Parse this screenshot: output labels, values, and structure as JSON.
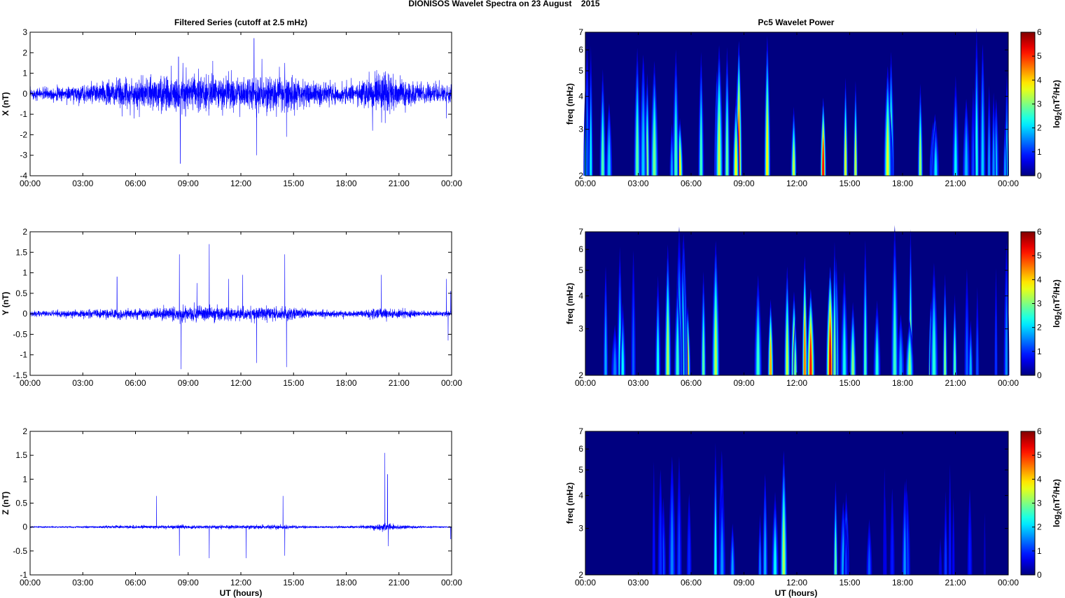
{
  "figure": {
    "suptitle": "DIONISOS Wavelet Spectra on 23 August    2015",
    "left_title": "Filtered Series (cutoff at 2.5 mHz)",
    "right_title": "Pc5 Wavelet Power",
    "xlabel": "UT (hours)",
    "spec_ylabel": "freq (mHz)",
    "colorbar_label": "log2(nT2/Hz)",
    "colorbar_label_parts": {
      "base": "log",
      "sub": "2",
      "mid": "(nT",
      "sup": "2",
      "end": "/Hz)"
    },
    "colormap": "jet"
  },
  "chart_data": [
    {
      "type": "line",
      "component": "X",
      "ylabel": "X (nT)",
      "ylim": [
        -4,
        3
      ],
      "yticks": [
        "-4",
        "-3",
        "-2",
        "-1",
        "0",
        "1",
        "2",
        "3"
      ],
      "xlim_hours": [
        0,
        24
      ],
      "xticks": [
        "00:00",
        "03:00",
        "06:00",
        "09:00",
        "12:00",
        "15:00",
        "18:00",
        "21:00",
        "00:00"
      ],
      "line_color": "#0000ff",
      "background_amplitude": 0.25,
      "envelope": [
        [
          0,
          0.5
        ],
        [
          3,
          0.8
        ],
        [
          5,
          1.3
        ],
        [
          7,
          1.5
        ],
        [
          8.5,
          1.8
        ],
        [
          10,
          1.6
        ],
        [
          12,
          1.6
        ],
        [
          13,
          1.6
        ],
        [
          14.5,
          1.7
        ],
        [
          16,
          1.1
        ],
        [
          18.5,
          0.9
        ],
        [
          20,
          1.9
        ],
        [
          21,
          1.5
        ],
        [
          22.5,
          0.8
        ],
        [
          24,
          0.7
        ]
      ],
      "spikes": [
        [
          8.45,
          1.8
        ],
        [
          8.55,
          -3.4
        ],
        [
          8.7,
          1.5
        ],
        [
          8.85,
          -1.1
        ],
        [
          10.4,
          1.6
        ],
        [
          11.3,
          1.1
        ],
        [
          12.75,
          2.7
        ],
        [
          12.9,
          -3.0
        ],
        [
          13.2,
          1.7
        ],
        [
          14.5,
          1.5
        ],
        [
          14.6,
          -2.1
        ],
        [
          19.5,
          -1.8
        ],
        [
          19.9,
          0.9
        ],
        [
          20.2,
          0.9
        ],
        [
          23.7,
          -1.2
        ]
      ]
    },
    {
      "type": "line",
      "component": "Y",
      "ylabel": "Y (nT)",
      "ylim": [
        -1.5,
        2
      ],
      "yticks": [
        "-1.5",
        "-1",
        "-0.5",
        "0",
        "0.5",
        "1",
        "1.5",
        "2"
      ],
      "xlim_hours": [
        0,
        24
      ],
      "xticks": [
        "00:00",
        "03:00",
        "06:00",
        "09:00",
        "12:00",
        "15:00",
        "18:00",
        "21:00",
        "00:00"
      ],
      "line_color": "#0000ff",
      "background_amplitude": 0.1,
      "envelope": [
        [
          0,
          0.3
        ],
        [
          3,
          0.45
        ],
        [
          5,
          0.6
        ],
        [
          7,
          0.6
        ],
        [
          8.5,
          0.9
        ],
        [
          10,
          0.85
        ],
        [
          12,
          0.75
        ],
        [
          14.5,
          0.8
        ],
        [
          16,
          0.4
        ],
        [
          18.5,
          0.35
        ],
        [
          20,
          0.7
        ],
        [
          21,
          0.5
        ],
        [
          22.5,
          0.3
        ],
        [
          24,
          0.3
        ]
      ],
      "spikes": [
        [
          4.95,
          0.9
        ],
        [
          8.5,
          1.45
        ],
        [
          8.6,
          -1.35
        ],
        [
          9.5,
          0.75
        ],
        [
          10.2,
          1.7
        ],
        [
          11.3,
          0.85
        ],
        [
          12.1,
          0.95
        ],
        [
          12.9,
          -1.2
        ],
        [
          14.5,
          1.45
        ],
        [
          14.6,
          -1.3
        ],
        [
          20,
          0.95
        ],
        [
          23.7,
          0.85
        ],
        [
          23.8,
          -0.65
        ],
        [
          23.95,
          0.55
        ]
      ]
    },
    {
      "type": "line",
      "component": "Z",
      "ylabel": "Z (nT)",
      "ylim": [
        -1,
        2
      ],
      "yticks": [
        "-1",
        "-0.5",
        "0",
        "0.5",
        "1",
        "1.5",
        "2"
      ],
      "xlim_hours": [
        0,
        24
      ],
      "xticks": [
        "00:00",
        "03:00",
        "06:00",
        "09:00",
        "12:00",
        "15:00",
        "18:00",
        "21:00",
        "00:00"
      ],
      "line_color": "#0000ff",
      "background_amplitude": 0.06,
      "envelope": [
        [
          0,
          0.1
        ],
        [
          3,
          0.15
        ],
        [
          5,
          0.25
        ],
        [
          7,
          0.3
        ],
        [
          8.5,
          0.35
        ],
        [
          10,
          0.3
        ],
        [
          12,
          0.3
        ],
        [
          14.5,
          0.35
        ],
        [
          16,
          0.2
        ],
        [
          18.5,
          0.2
        ],
        [
          19.5,
          0.4
        ],
        [
          20.2,
          0.7
        ],
        [
          21,
          0.35
        ],
        [
          22.5,
          0.15
        ],
        [
          24,
          0.1
        ]
      ],
      "spikes": [
        [
          7.2,
          0.65
        ],
        [
          8.5,
          -0.6
        ],
        [
          10.2,
          -0.65
        ],
        [
          12.3,
          -0.65
        ],
        [
          14.4,
          0.65
        ],
        [
          14.5,
          -0.6
        ],
        [
          20.2,
          1.55
        ],
        [
          20.35,
          1.1
        ],
        [
          20.4,
          -0.4
        ],
        [
          23.95,
          -0.25
        ]
      ]
    },
    {
      "type": "heatmap",
      "component": "X",
      "ylabel": "freq (mHz)",
      "yscale": "log",
      "ylim_mhz": [
        2,
        7
      ],
      "yticks": [
        "2",
        "3",
        "4",
        "5",
        "6",
        "7"
      ],
      "xlim_hours": [
        0,
        24
      ],
      "xticks": [
        "00:00",
        "03:00",
        "06:00",
        "09:00",
        "12:00",
        "15:00",
        "18:00",
        "21:00",
        "00:00"
      ],
      "clim": [
        0,
        6
      ],
      "cbar_ticks": [
        "0",
        "1",
        "2",
        "3",
        "4",
        "5",
        "6"
      ],
      "activity": [
        [
          0,
          1.8
        ],
        [
          1,
          2.6
        ],
        [
          2,
          2.2
        ],
        [
          3,
          2.8
        ],
        [
          5,
          3.6
        ],
        [
          6.5,
          4.5
        ],
        [
          8,
          5.6
        ],
        [
          9,
          5.2
        ],
        [
          10,
          4.8
        ],
        [
          11,
          5.2
        ],
        [
          12,
          6.0
        ],
        [
          13,
          5.2
        ],
        [
          14,
          5.9
        ],
        [
          15,
          4.2
        ],
        [
          17,
          3.8
        ],
        [
          18.5,
          4.5
        ],
        [
          20,
          3.9
        ],
        [
          21,
          3.2
        ],
        [
          22,
          2.4
        ],
        [
          24,
          1.8
        ]
      ]
    },
    {
      "type": "heatmap",
      "component": "Y",
      "ylabel": "freq (mHz)",
      "yscale": "log",
      "ylim_mhz": [
        2,
        7
      ],
      "yticks": [
        "2",
        "3",
        "4",
        "5",
        "6",
        "7"
      ],
      "xlim_hours": [
        0,
        24
      ],
      "xticks": [
        "00:00",
        "03:00",
        "06:00",
        "09:00",
        "12:00",
        "15:00",
        "18:00",
        "21:00",
        "00:00"
      ],
      "clim": [
        0,
        6
      ],
      "cbar_ticks": [
        "0",
        "1",
        "2",
        "3",
        "4",
        "5",
        "6"
      ],
      "activity": [
        [
          0,
          1.2
        ],
        [
          1,
          2.0
        ],
        [
          2,
          2.2
        ],
        [
          3,
          3.0
        ],
        [
          4.5,
          3.6
        ],
        [
          6,
          4.2
        ],
        [
          7.5,
          4.4
        ],
        [
          9,
          4.6
        ],
        [
          10,
          4.4
        ],
        [
          11.5,
          5.4
        ],
        [
          12.5,
          5.6
        ],
        [
          14,
          5.6
        ],
        [
          15,
          3.6
        ],
        [
          17,
          2.8
        ],
        [
          18.5,
          3.8
        ],
        [
          19.5,
          4.0
        ],
        [
          20.5,
          3.0
        ],
        [
          22,
          2.4
        ],
        [
          24,
          1.6
        ]
      ]
    },
    {
      "type": "heatmap",
      "component": "Z",
      "ylabel": "freq (mHz)",
      "yscale": "log",
      "ylim_mhz": [
        2,
        7
      ],
      "yticks": [
        "2",
        "3",
        "4",
        "5",
        "6",
        "7"
      ],
      "xlim_hours": [
        0,
        24
      ],
      "xticks": [
        "00:00",
        "03:00",
        "06:00",
        "09:00",
        "12:00",
        "15:00",
        "18:00",
        "21:00",
        "00:00"
      ],
      "clim": [
        0,
        6
      ],
      "cbar_ticks": [
        "0",
        "1",
        "2",
        "3",
        "4",
        "5",
        "6"
      ],
      "activity": [
        [
          0,
          0.2
        ],
        [
          2,
          0.4
        ],
        [
          3.5,
          1.0
        ],
        [
          5,
          1.5
        ],
        [
          7,
          1.9
        ],
        [
          8.5,
          2.8
        ],
        [
          10,
          2.8
        ],
        [
          11,
          3.8
        ],
        [
          12,
          4.2
        ],
        [
          13,
          3.6
        ],
        [
          14,
          4.4
        ],
        [
          15,
          1.8
        ],
        [
          17,
          1.0
        ],
        [
          19,
          2.6
        ],
        [
          20,
          1.2
        ],
        [
          22,
          1.0
        ],
        [
          24,
          0.3
        ]
      ]
    }
  ]
}
